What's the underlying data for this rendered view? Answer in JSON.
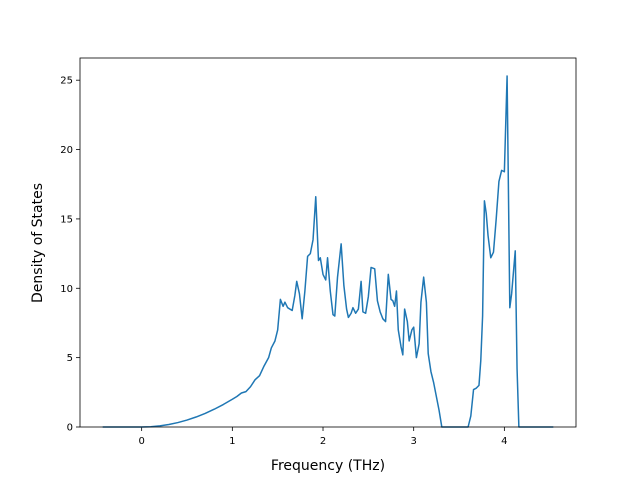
{
  "chart_data": {
    "type": "line",
    "xlabel": "Frequency (THz)",
    "ylabel": "Density of States",
    "xlim": [
      -0.68,
      4.79
    ],
    "ylim": [
      0,
      26.6
    ],
    "xticks": [
      0,
      1,
      2,
      3,
      4
    ],
    "yticks": [
      0,
      5,
      10,
      15,
      20,
      25
    ],
    "series": [
      {
        "color": "#1f77b4",
        "x": [
          -0.43,
          0,
          0.1,
          0.2,
          0.3,
          0.4,
          0.5,
          0.6,
          0.7,
          0.8,
          0.9,
          1.0,
          1.05,
          1.1,
          1.15,
          1.2,
          1.25,
          1.3,
          1.35,
          1.4,
          1.43,
          1.47,
          1.5,
          1.53,
          1.56,
          1.58,
          1.61,
          1.66,
          1.69,
          1.71,
          1.74,
          1.77,
          1.8,
          1.83,
          1.86,
          1.89,
          1.92,
          1.95,
          1.97,
          2.0,
          2.03,
          2.05,
          2.08,
          2.11,
          2.13,
          2.16,
          2.2,
          2.23,
          2.26,
          2.28,
          2.31,
          2.33,
          2.36,
          2.39,
          2.42,
          2.44,
          2.47,
          2.5,
          2.53,
          2.57,
          2.6,
          2.63,
          2.66,
          2.69,
          2.72,
          2.75,
          2.77,
          2.79,
          2.81,
          2.83,
          2.86,
          2.88,
          2.9,
          2.93,
          2.95,
          2.98,
          3.0,
          3.03,
          3.06,
          3.08,
          3.11,
          3.14,
          3.16,
          3.19,
          3.22,
          3.25,
          3.28,
          3.31,
          3.6,
          3.63,
          3.66,
          3.69,
          3.72,
          3.74,
          3.76,
          3.78,
          3.8,
          3.82,
          3.85,
          3.88,
          3.91,
          3.94,
          3.97,
          4.0,
          4.03,
          4.06,
          4.08,
          4.12,
          4.14,
          4.16,
          4.54
        ],
        "values": [
          0,
          0,
          0.02,
          0.08,
          0.18,
          0.32,
          0.5,
          0.72,
          0.98,
          1.28,
          1.62,
          2.0,
          2.2,
          2.45,
          2.55,
          2.9,
          3.4,
          3.7,
          4.4,
          5.0,
          5.7,
          6.2,
          7.0,
          9.2,
          8.7,
          9.0,
          8.6,
          8.4,
          9.5,
          10.5,
          9.6,
          7.8,
          9.8,
          12.3,
          12.5,
          13.5,
          16.6,
          12.0,
          12.2,
          11.0,
          10.6,
          12.2,
          9.8,
          8.1,
          8.0,
          10.8,
          13.2,
          10.2,
          8.5,
          7.9,
          8.2,
          8.6,
          8.2,
          8.5,
          10.5,
          8.3,
          8.2,
          9.4,
          11.5,
          11.4,
          9.1,
          8.3,
          7.8,
          7.6,
          11.0,
          9.2,
          9.1,
          8.7,
          9.8,
          7.0,
          5.8,
          5.2,
          8.5,
          7.6,
          6.2,
          7.0,
          7.2,
          5.0,
          6.0,
          9.0,
          10.8,
          9.0,
          5.3,
          4.0,
          3.2,
          2.2,
          1.2,
          0,
          0,
          0.8,
          2.7,
          2.8,
          3.0,
          4.8,
          8.0,
          16.3,
          15.4,
          13.8,
          12.2,
          12.6,
          15.0,
          17.7,
          18.5,
          18.4,
          25.3,
          8.6,
          9.6,
          12.7,
          4.2,
          0,
          0
        ]
      }
    ]
  }
}
